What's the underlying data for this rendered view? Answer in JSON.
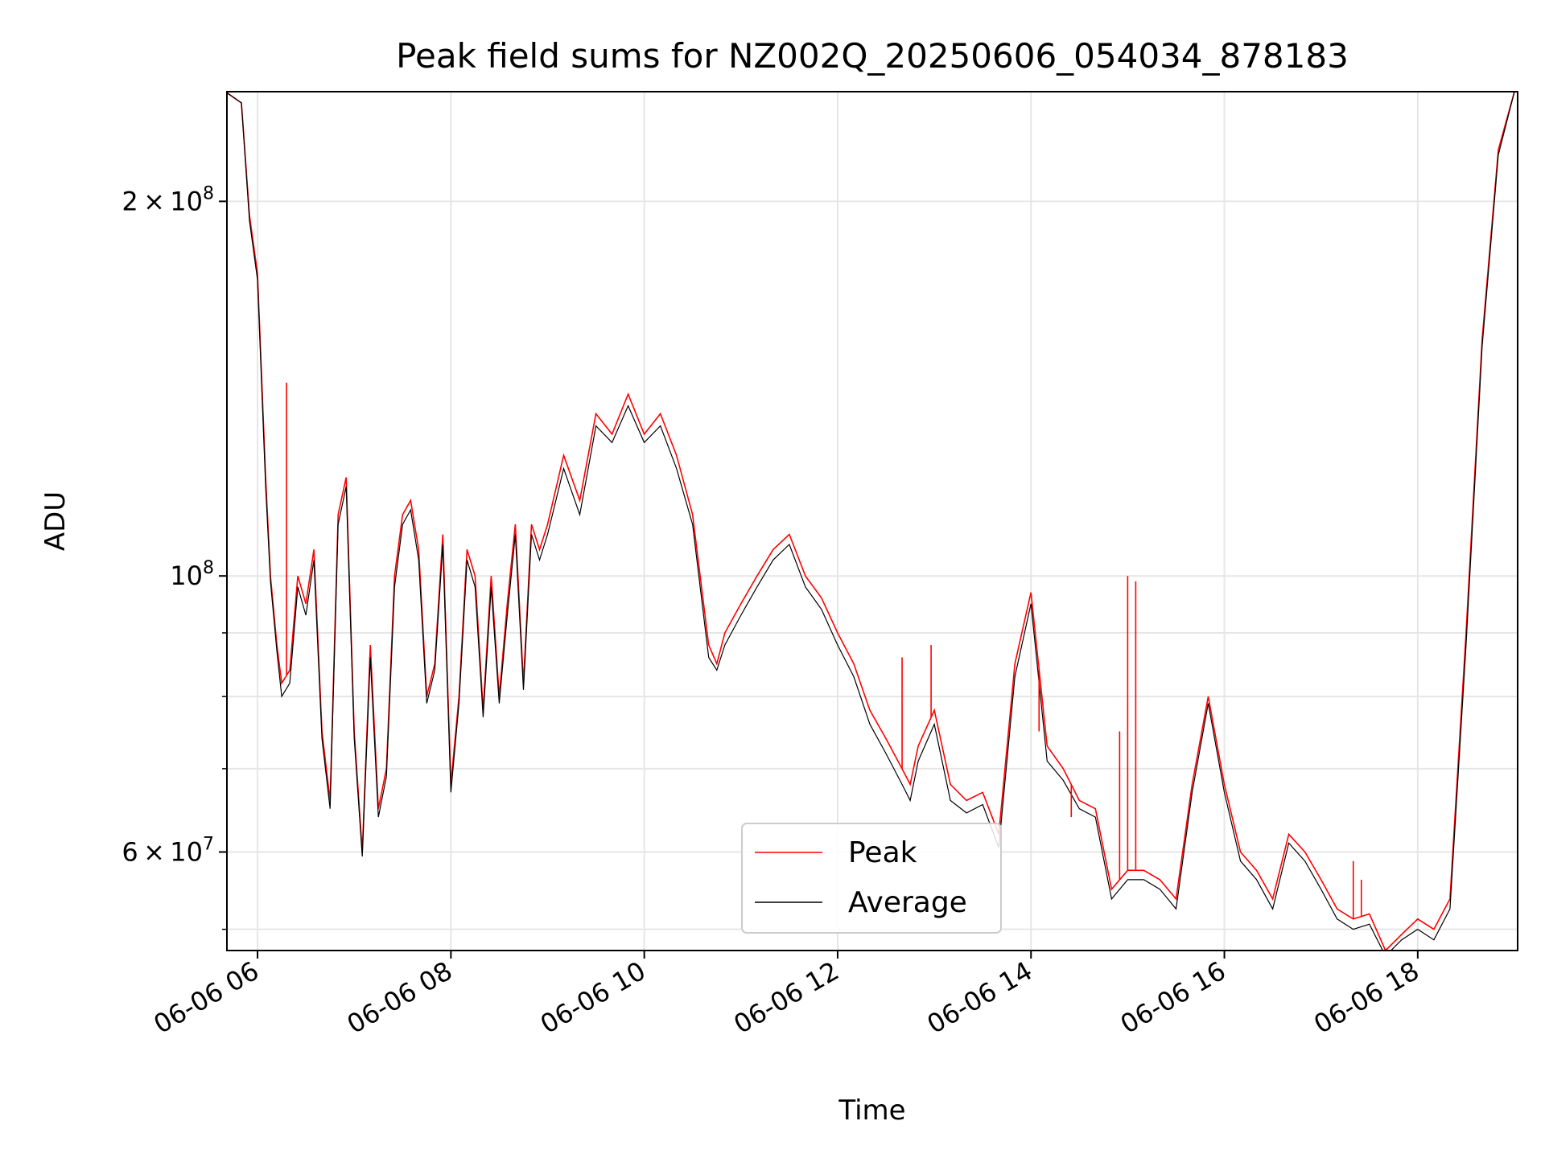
{
  "chart_data": {
    "type": "line",
    "title": "Peak field sums for NZ002Q_20250606_054034_878183",
    "xlabel": "Time",
    "ylabel": "ADU",
    "yscale": "log",
    "ylim": [
      50000000,
      245000000
    ],
    "xlim": [
      "2025-06-06 05:41",
      "2025-06-06 19:02"
    ],
    "grid": true,
    "legend_position": "lower-center",
    "x_ticks": [
      "06-06 06",
      "06-06 08",
      "06-06 10",
      "06-06 12",
      "06-06 14",
      "06-06 16",
      "06-06 18"
    ],
    "y_major_ticks": [
      {
        "value": 100000000,
        "label": "10^8"
      }
    ],
    "y_minor_ticks": [
      {
        "value": 60000000,
        "label": "6×10^7"
      },
      {
        "value": 200000000,
        "label": "2×10^8"
      }
    ],
    "y_unlabeled_ticks": [
      52000000,
      70000000,
      80000000,
      90000000
    ],
    "x": [
      "2025-06-06 05:40",
      "2025-06-06 05:50",
      "2025-06-06 05:55",
      "2025-06-06 06:00",
      "2025-06-06 06:05",
      "2025-06-06 06:08",
      "2025-06-06 06:12",
      "2025-06-06 06:15",
      "2025-06-06 06:20",
      "2025-06-06 06:25",
      "2025-06-06 06:30",
      "2025-06-06 06:35",
      "2025-06-06 06:40",
      "2025-06-06 06:45",
      "2025-06-06 06:50",
      "2025-06-06 06:55",
      "2025-06-06 07:00",
      "2025-06-06 07:05",
      "2025-06-06 07:10",
      "2025-06-06 07:15",
      "2025-06-06 07:20",
      "2025-06-06 07:25",
      "2025-06-06 07:30",
      "2025-06-06 07:35",
      "2025-06-06 07:40",
      "2025-06-06 07:45",
      "2025-06-06 07:50",
      "2025-06-06 07:55",
      "2025-06-06 08:00",
      "2025-06-06 08:05",
      "2025-06-06 08:10",
      "2025-06-06 08:15",
      "2025-06-06 08:20",
      "2025-06-06 08:25",
      "2025-06-06 08:30",
      "2025-06-06 08:35",
      "2025-06-06 08:40",
      "2025-06-06 08:45",
      "2025-06-06 08:50",
      "2025-06-06 08:55",
      "2025-06-06 09:00",
      "2025-06-06 09:10",
      "2025-06-06 09:20",
      "2025-06-06 09:30",
      "2025-06-06 09:40",
      "2025-06-06 09:50",
      "2025-06-06 10:00",
      "2025-06-06 10:10",
      "2025-06-06 10:20",
      "2025-06-06 10:30",
      "2025-06-06 10:40",
      "2025-06-06 10:45",
      "2025-06-06 10:50",
      "2025-06-06 11:00",
      "2025-06-06 11:10",
      "2025-06-06 11:20",
      "2025-06-06 11:30",
      "2025-06-06 11:40",
      "2025-06-06 11:50",
      "2025-06-06 12:00",
      "2025-06-06 12:10",
      "2025-06-06 12:20",
      "2025-06-06 12:30",
      "2025-06-06 12:40",
      "2025-06-06 12:45",
      "2025-06-06 12:50",
      "2025-06-06 13:00",
      "2025-06-06 13:10",
      "2025-06-06 13:20",
      "2025-06-06 13:30",
      "2025-06-06 13:40",
      "2025-06-06 13:50",
      "2025-06-06 14:00",
      "2025-06-06 14:10",
      "2025-06-06 14:20",
      "2025-06-06 14:30",
      "2025-06-06 14:40",
      "2025-06-06 14:50",
      "2025-06-06 15:00",
      "2025-06-06 15:10",
      "2025-06-06 15:20",
      "2025-06-06 15:30",
      "2025-06-06 15:40",
      "2025-06-06 15:50",
      "2025-06-06 16:00",
      "2025-06-06 16:10",
      "2025-06-06 16:20",
      "2025-06-06 16:30",
      "2025-06-06 16:40",
      "2025-06-06 16:50",
      "2025-06-06 17:00",
      "2025-06-06 17:10",
      "2025-06-06 17:20",
      "2025-06-06 17:30",
      "2025-06-06 17:40",
      "2025-06-06 17:50",
      "2025-06-06 18:00",
      "2025-06-06 18:10",
      "2025-06-06 18:20",
      "2025-06-06 18:30",
      "2025-06-06 18:40",
      "2025-06-06 18:50",
      "2025-06-06 19:00"
    ],
    "series": [
      {
        "name": "Peak",
        "color": "#ff0000",
        "values": [
          245000000,
          240000000,
          195000000,
          175000000,
          120000000,
          100000000,
          88000000,
          82000000,
          84000000,
          100000000,
          95000000,
          105000000,
          75000000,
          66000000,
          112000000,
          120000000,
          75000000,
          60000000,
          88000000,
          65000000,
          70000000,
          100000000,
          112000000,
          115000000,
          105000000,
          80000000,
          85000000,
          108000000,
          68000000,
          80000000,
          105000000,
          100000000,
          78000000,
          100000000,
          80000000,
          95000000,
          110000000,
          82000000,
          110000000,
          105000000,
          110000000,
          125000000,
          115000000,
          135000000,
          130000000,
          140000000,
          130000000,
          135000000,
          125000000,
          112000000,
          88000000,
          85000000,
          90000000,
          95000000,
          100000000,
          105000000,
          108000000,
          100000000,
          96000000,
          90000000,
          85000000,
          78000000,
          74000000,
          70000000,
          68000000,
          73000000,
          78000000,
          68000000,
          66000000,
          67000000,
          62000000,
          85000000,
          97000000,
          73000000,
          70000000,
          66000000,
          65000000,
          56000000,
          58000000,
          58000000,
          57000000,
          55000000,
          68000000,
          80000000,
          68000000,
          60000000,
          58000000,
          55000000,
          62000000,
          60000000,
          57000000,
          54000000,
          53000000,
          53500000,
          50000000,
          51500000,
          53000000,
          52000000,
          55000000,
          90000000,
          155000000,
          220000000,
          245000000
        ]
      },
      {
        "name": "Average",
        "color": "#000000",
        "values": [
          245000000,
          240000000,
          193000000,
          173000000,
          118000000,
          99000000,
          87000000,
          80000000,
          82000000,
          98000000,
          93000000,
          103000000,
          74000000,
          65000000,
          110000000,
          118000000,
          74000000,
          59500000,
          86000000,
          64000000,
          69000000,
          98000000,
          110000000,
          113000000,
          103000000,
          79000000,
          84000000,
          106000000,
          67000000,
          79000000,
          103000000,
          98000000,
          77000000,
          98000000,
          79000000,
          93000000,
          108000000,
          81000000,
          108000000,
          103000000,
          108000000,
          122000000,
          112000000,
          132000000,
          128000000,
          137000000,
          128000000,
          132000000,
          122000000,
          110000000,
          86000000,
          84000000,
          88000000,
          93000000,
          98000000,
          103000000,
          106000000,
          98000000,
          94000000,
          88000000,
          83000000,
          76000000,
          72000000,
          68000000,
          66000000,
          71000000,
          76000000,
          66000000,
          64500000,
          65500000,
          60500000,
          83000000,
          95000000,
          71000000,
          68500000,
          65000000,
          64000000,
          55000000,
          57000000,
          57000000,
          56000000,
          54000000,
          67000000,
          79000000,
          67000000,
          59000000,
          57000000,
          54000000,
          61000000,
          59000000,
          56000000,
          53000000,
          52000000,
          52500000,
          49500000,
          51000000,
          52000000,
          51000000,
          54000000,
          88000000,
          153000000,
          218000000,
          245000000
        ]
      }
    ],
    "peak_spikes": [
      {
        "x": "2025-06-06 06:18",
        "y": 143000000
      },
      {
        "x": "2025-06-06 12:40",
        "y": 86000000
      },
      {
        "x": "2025-06-06 12:58",
        "y": 88000000
      },
      {
        "x": "2025-06-06 14:05",
        "y": 75000000
      },
      {
        "x": "2025-06-06 14:25",
        "y": 64000000
      },
      {
        "x": "2025-06-06 14:55",
        "y": 75000000
      },
      {
        "x": "2025-06-06 15:00",
        "y": 100000000
      },
      {
        "x": "2025-06-06 15:05",
        "y": 99000000
      },
      {
        "x": "2025-06-06 17:20",
        "y": 59000000
      },
      {
        "x": "2025-06-06 17:25",
        "y": 57000000
      }
    ]
  },
  "legend": {
    "peak_label": "Peak",
    "average_label": "Average"
  }
}
